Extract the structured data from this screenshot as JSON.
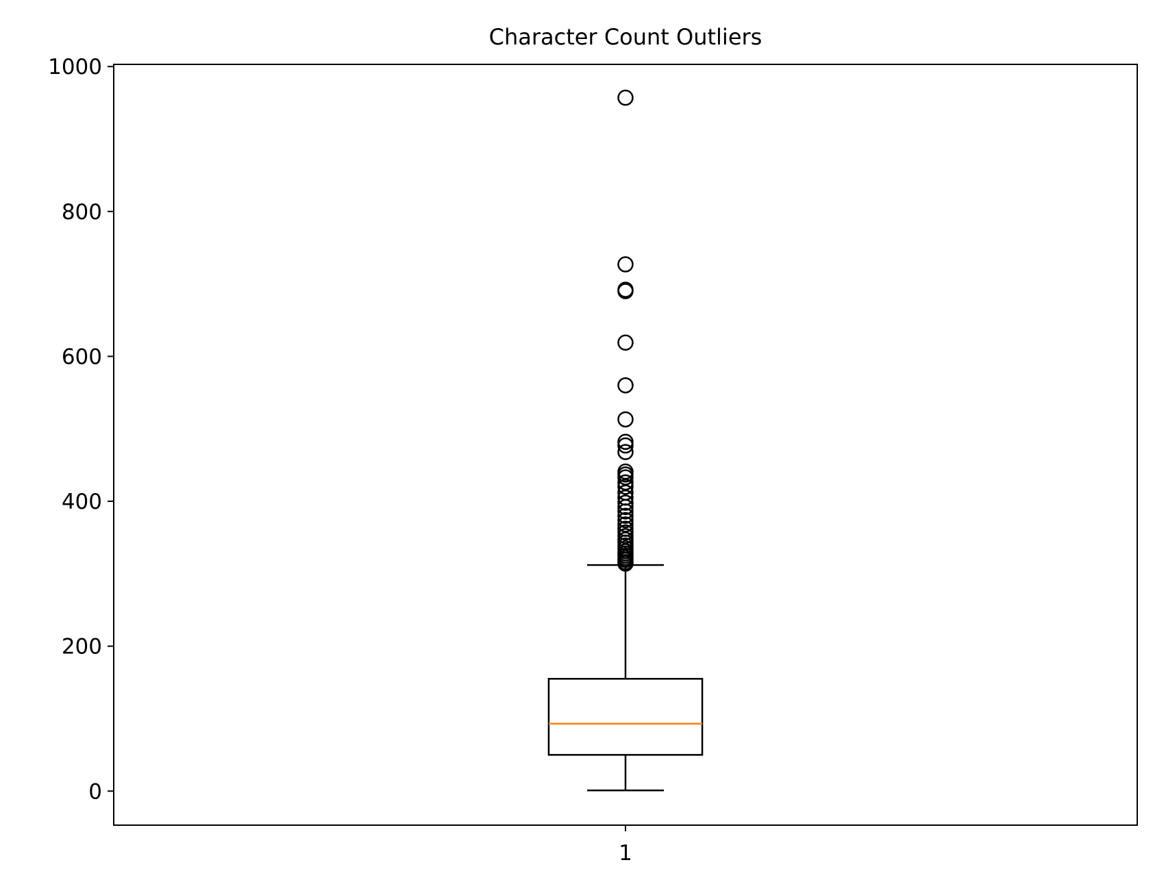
{
  "chart_data": {
    "type": "box",
    "title": "Character Count Outliers",
    "xlabel": "",
    "ylabel": "",
    "categories": [
      "1"
    ],
    "ylim": [
      -47,
      1003
    ],
    "yticks": [
      0,
      200,
      400,
      600,
      800,
      1000
    ],
    "grid": false,
    "boxes": [
      {
        "category": "1",
        "whisker_low": 1,
        "q1": 50,
        "median": 93,
        "q3": 155,
        "whisker_high": 312,
        "outliers": [
          957,
          727,
          692,
          690,
          619,
          560,
          513,
          482,
          477,
          468,
          441,
          437,
          433,
          426,
          420,
          412,
          405,
          398,
          392,
          386,
          380,
          374,
          368,
          362,
          357,
          352,
          347,
          343,
          339,
          335,
          331,
          328,
          325,
          322,
          319,
          316,
          314
        ]
      }
    ],
    "colors": {
      "box": "#000000",
      "median": "#ff7f0e",
      "whisker": "#000000",
      "flier": "#000000"
    }
  }
}
